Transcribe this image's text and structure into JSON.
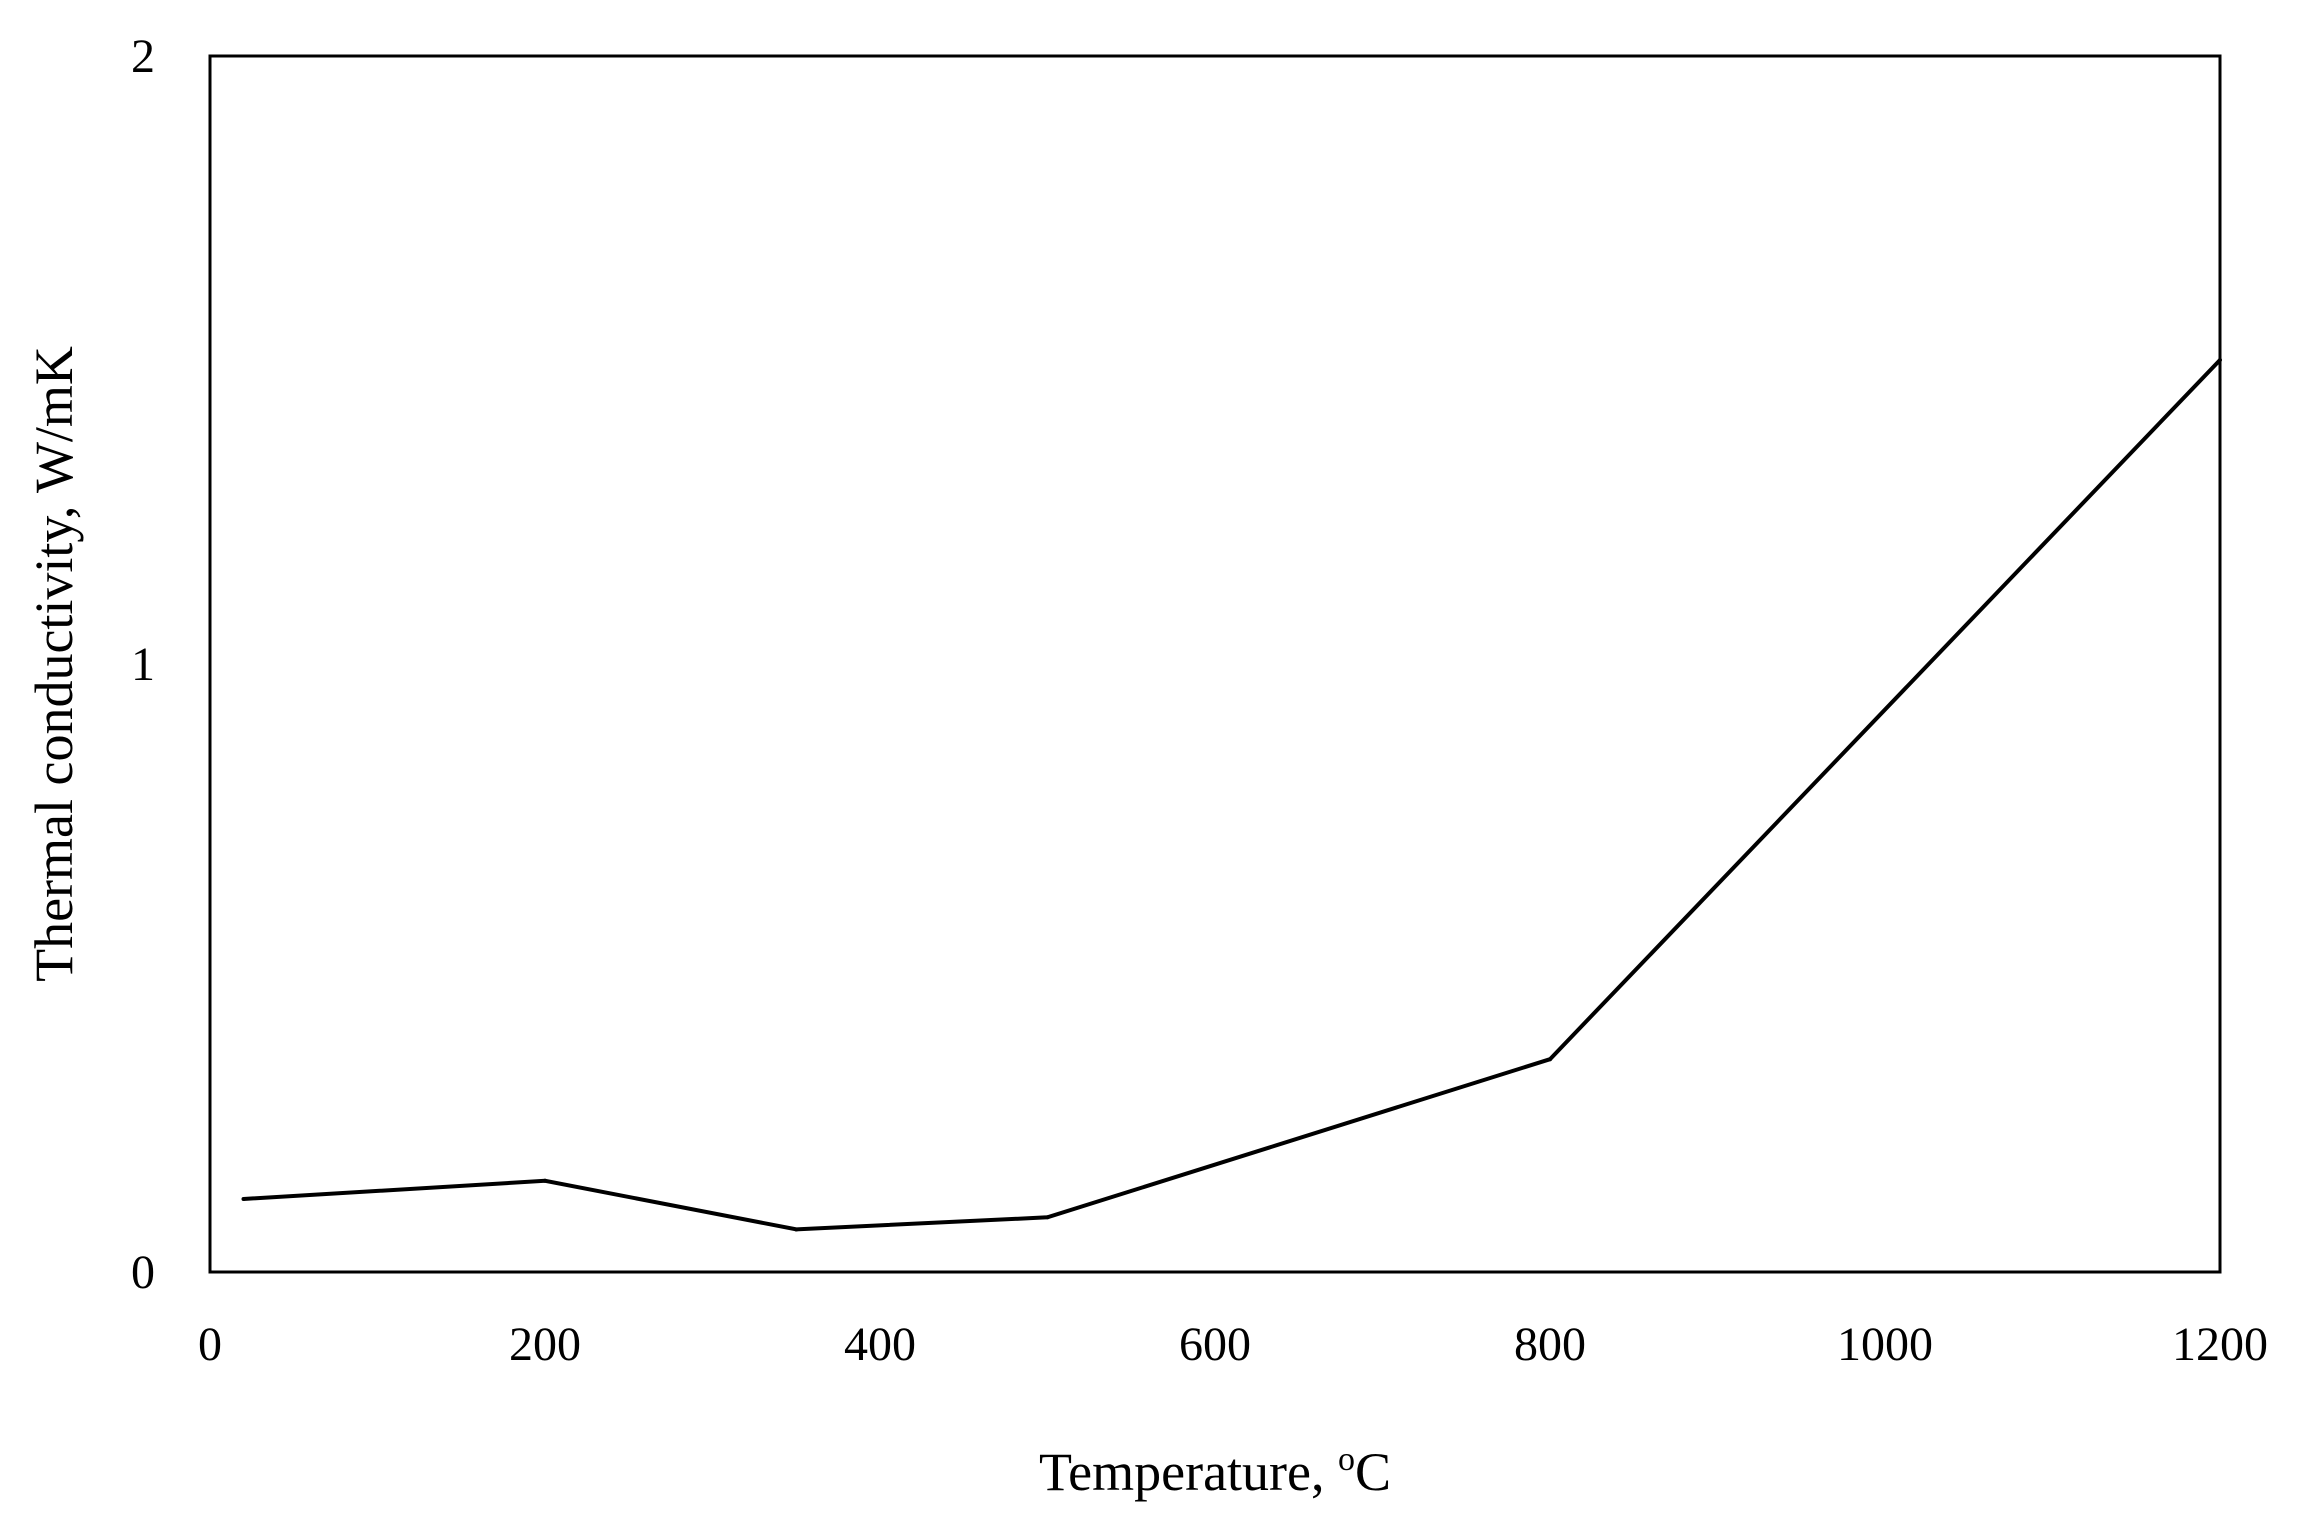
{
  "chart_data": {
    "type": "line",
    "title": "",
    "xlabel": "Temperature, ",
    "xlabel_unit_superscript": "o",
    "xlabel_unit": "C",
    "ylabel": "Thermal conductivity, W/mK",
    "xlim": [
      0,
      1200
    ],
    "ylim": [
      0,
      2
    ],
    "x_ticks": [
      "0",
      "200",
      "400",
      "600",
      "800",
      "1000",
      "1200"
    ],
    "y_ticks": [
      "0",
      "1",
      "2"
    ],
    "grid": false,
    "legend": "none",
    "series": [
      {
        "color": "#000000",
        "x": [
          20,
          200,
          350,
          500,
          800,
          1200
        ],
        "y": [
          0.12,
          0.15,
          0.07,
          0.09,
          0.35,
          1.5
        ]
      }
    ]
  }
}
